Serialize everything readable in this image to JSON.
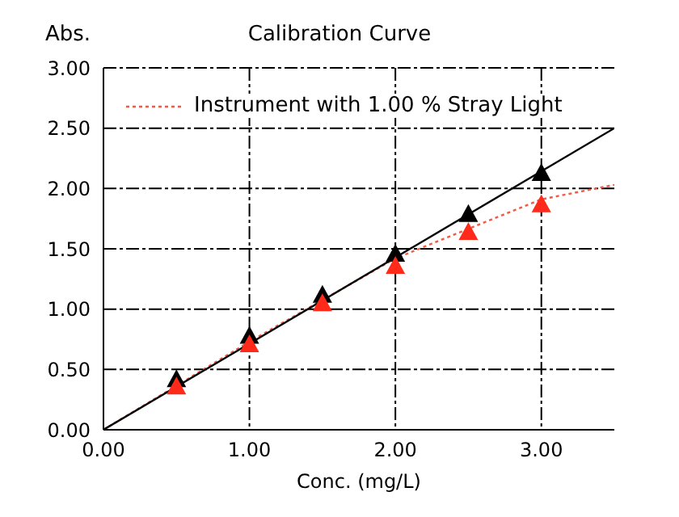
{
  "chart_data": {
    "type": "line",
    "title": "Calibration Curve",
    "xlabel": "Conc. (mg/L)",
    "ylabel": "Abs.",
    "series": [
      {
        "name": "Instrument with 1.00 % Stray Light",
        "color": "#f05a46",
        "line_style": "dotted",
        "marker": "none",
        "x": [
          0,
          1,
          2,
          3,
          3.5
        ],
        "values": [
          0,
          0.73,
          1.42,
          1.91,
          2.03
        ]
      },
      {
        "color": "#000000",
        "line_style": "solid",
        "marker": "none",
        "x": [
          0,
          3.5
        ],
        "values": [
          0,
          2.5
        ]
      },
      {
        "type": "scatter",
        "color": "#000000",
        "marker": "triangle",
        "x": [
          0.5,
          1,
          1.5,
          2,
          2.5,
          3
        ],
        "values": [
          0.42,
          0.78,
          1.12,
          1.46,
          1.79,
          2.13
        ]
      },
      {
        "type": "scatter",
        "color": "#ff2a1a",
        "marker": "triangle",
        "x": [
          0.5,
          1,
          1.5,
          2,
          2.5,
          3
        ],
        "values": [
          0.36,
          0.71,
          1.05,
          1.36,
          1.64,
          1.87
        ]
      }
    ],
    "xlim": [
      0,
      3.5
    ],
    "xticks": [
      {
        "value": 0,
        "label": "0.00"
      },
      {
        "value": 1,
        "label": "1.00"
      },
      {
        "value": 2,
        "label": "2.00"
      },
      {
        "value": 3,
        "label": "3.00"
      }
    ],
    "ylim": [
      0,
      3
    ],
    "yticks": [
      {
        "value": 0,
        "label": "0.00"
      },
      {
        "value": 0.5,
        "label": "0.50"
      },
      {
        "value": 1,
        "label": "1.00"
      },
      {
        "value": 1.5,
        "label": "1.50"
      },
      {
        "value": 2,
        "label": "2.00"
      },
      {
        "value": 2.5,
        "label": "2.50"
      },
      {
        "value": 3,
        "label": "3.00"
      }
    ],
    "grid": true,
    "legend": "top left"
  }
}
